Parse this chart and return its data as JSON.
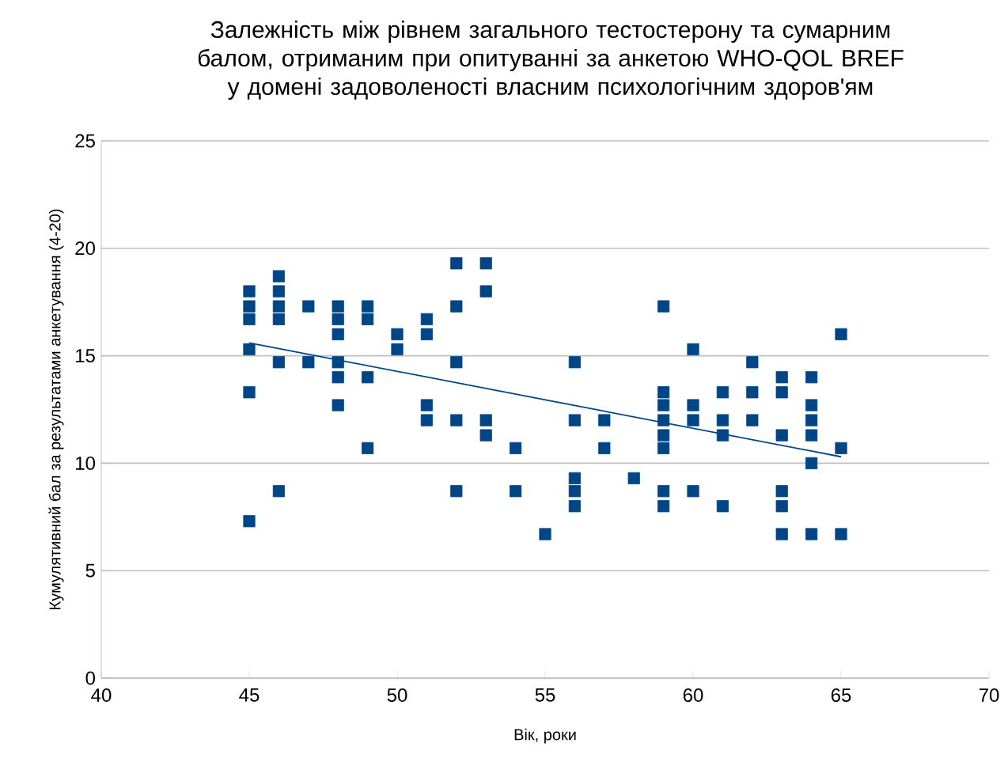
{
  "chart_data": {
    "type": "scatter",
    "title": "Залежність між рівнем загального тестостерону та сумарним балом, отриманим при опитуванні за анкетою WHO-QOL BREF у домені задоволеності власним психологічним здоров'ям",
    "xlabel": "Вік, роки",
    "ylabel": "Кумулятивний бал за результатами анкетування (4-20)",
    "series": [
      {
        "color": "#004586",
        "marker": "square",
        "x": [
          45,
          45,
          45,
          45,
          45,
          45,
          46,
          46,
          46,
          46,
          46,
          46,
          47,
          47,
          48,
          48,
          48,
          48,
          48,
          48,
          49,
          49,
          49,
          49,
          50,
          50,
          51,
          51,
          51,
          51,
          52,
          52,
          52,
          52,
          52,
          53,
          53,
          53,
          53,
          54,
          54,
          55,
          56,
          56,
          56,
          56,
          56,
          57,
          57,
          58,
          59,
          59,
          59,
          59,
          59,
          59,
          59,
          59,
          60,
          60,
          60,
          60,
          61,
          61,
          61,
          61,
          62,
          62,
          62,
          63,
          63,
          63,
          63,
          63,
          63,
          64,
          64,
          64,
          64,
          64,
          64,
          65,
          65,
          65
        ],
        "values": [
          18,
          17.3,
          16.7,
          15.3,
          13.3,
          7.3,
          18.7,
          18,
          17.3,
          16.7,
          14.7,
          8.7,
          17.3,
          14.7,
          17.3,
          16.7,
          16,
          14.7,
          14,
          12.7,
          17.3,
          16.7,
          14,
          10.7,
          16,
          15.3,
          16.7,
          16,
          12.7,
          12,
          19.3,
          17.3,
          14.7,
          12,
          8.7,
          19.3,
          18,
          12,
          11.3,
          10.7,
          8.7,
          6.7,
          14.7,
          12,
          9.3,
          8.7,
          8,
          12,
          10.7,
          9.3,
          17.3,
          13.3,
          12.7,
          12,
          11.3,
          10.7,
          8.7,
          8,
          15.3,
          12.7,
          12,
          8.7,
          13.3,
          12,
          11.3,
          8,
          14.7,
          13.3,
          12,
          14,
          13.3,
          11.3,
          8.7,
          8,
          6.7,
          14,
          12.7,
          12,
          11.3,
          10,
          6.7,
          16,
          10.7,
          6.7
        ]
      },
      {
        "type": "line",
        "color": "#004586",
        "x": [
          45,
          65
        ],
        "values": [
          15.6,
          10.3
        ]
      }
    ],
    "xlim": [
      40,
      70
    ],
    "xticks": [
      40,
      45,
      50,
      55,
      60,
      65,
      70
    ],
    "ylim": [
      0,
      25
    ],
    "yticks": [
      0,
      5,
      10,
      15,
      20,
      25
    ],
    "grid": "y"
  }
}
